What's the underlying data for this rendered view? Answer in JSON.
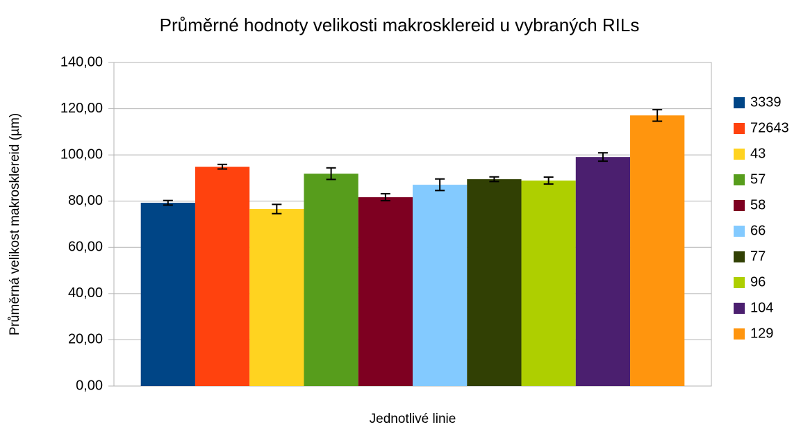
{
  "chart_data": {
    "type": "bar",
    "title": "Průměrné hodnoty velikosti makrosklereid u vybraných RILs",
    "x_label": "Jednotlivé linie",
    "y_label": "Průměrná velikost makrosklereid (µm)",
    "categories": [
      null
    ],
    "series": [
      {
        "name": "3339",
        "color": "#004586",
        "values": [
          79.3
        ],
        "errors": [
          1.0
        ]
      },
      {
        "name": "72643",
        "color": "#ff420e",
        "values": [
          94.9
        ],
        "errors": [
          1.0
        ]
      },
      {
        "name": "43",
        "color": "#ffd320",
        "values": [
          76.6
        ],
        "errors": [
          2.0
        ]
      },
      {
        "name": "57",
        "color": "#579d1c",
        "values": [
          91.9
        ],
        "errors": [
          2.5
        ]
      },
      {
        "name": "58",
        "color": "#7e0021",
        "values": [
          81.7
        ],
        "errors": [
          1.5
        ]
      },
      {
        "name": "66",
        "color": "#83caff",
        "values": [
          87.1
        ],
        "errors": [
          2.5
        ]
      },
      {
        "name": "77",
        "color": "#314004",
        "values": [
          89.5
        ],
        "errors": [
          1.0
        ]
      },
      {
        "name": "96",
        "color": "#aecf00",
        "values": [
          88.9
        ],
        "errors": [
          1.5
        ]
      },
      {
        "name": "104",
        "color": "#4b1f6f",
        "values": [
          99.1
        ],
        "errors": [
          1.8
        ]
      },
      {
        "name": "129",
        "color": "#ff950e",
        "values": [
          117.1
        ],
        "errors": [
          2.5
        ]
      }
    ],
    "ylim": [
      0,
      140
    ],
    "yticks": [
      {
        "value": 0,
        "label": "0,00"
      },
      {
        "value": 20,
        "label": "20,00"
      },
      {
        "value": 40,
        "label": "40,00"
      },
      {
        "value": 60,
        "label": "60,00"
      },
      {
        "value": 80,
        "label": "80,00"
      },
      {
        "value": 100,
        "label": "100,00"
      },
      {
        "value": 120,
        "label": "120,00"
      },
      {
        "value": 140,
        "label": "140,00"
      }
    ],
    "grid": true,
    "legend": "right"
  }
}
